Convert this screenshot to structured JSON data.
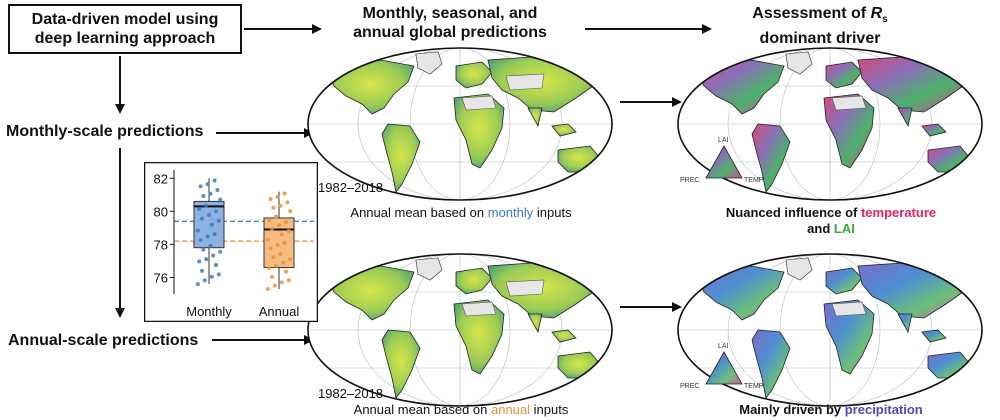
{
  "model_box": {
    "line1": "Data-driven model using",
    "line2": "deep learning approach"
  },
  "header_predictions": {
    "line1": "Monthly, seasonal, and",
    "line2": "annual global predictions"
  },
  "header_assessment": {
    "line1": "Assessment of ",
    "symbol": "R",
    "subscript": "s",
    "line2": "dominant driver"
  },
  "monthly_label": "Monthly-scale predictions",
  "annual_label": "Annual-scale predictions",
  "map_year": "1982–2018",
  "caption_monthly": {
    "pre": "Annual mean based on ",
    "highlight": "monthly",
    "post": " inputs"
  },
  "caption_annual": {
    "pre": "Annual mean based on ",
    "highlight": "annual",
    "post": " inputs"
  },
  "caption_driver_top": {
    "pre": "Nuanced influence of ",
    "hl1": "temperature",
    "mid": "and ",
    "hl2": "LAI"
  },
  "caption_driver_bottom": {
    "pre": "Mainly driven by ",
    "highlight": "precipitation"
  },
  "triangle": {
    "top": "LAI",
    "left": "PREC",
    "right": "TEMP"
  },
  "colors": {
    "monthly": "#3a7bbf",
    "annual": "#e8913a",
    "temperature": "#e0245e",
    "lai": "#37a83d",
    "precipitation": "#4a4ab0"
  },
  "chart_data": {
    "type": "box",
    "categories": [
      "Monthly",
      "Annual"
    ],
    "ylim": [
      75,
      82.5
    ],
    "yticks": [
      76,
      78,
      80,
      82
    ],
    "series": [
      {
        "name": "Monthly",
        "q1": 77.8,
        "median": 80.3,
        "q3": 80.6,
        "whisker_low": 75.6,
        "whisker_high": 82.0,
        "mean_line": 79.4
      },
      {
        "name": "Annual",
        "q1": 76.6,
        "median": 78.9,
        "q3": 79.6,
        "whisker_low": 75.3,
        "whisker_high": 81.2,
        "mean_line": 78.2
      }
    ]
  }
}
